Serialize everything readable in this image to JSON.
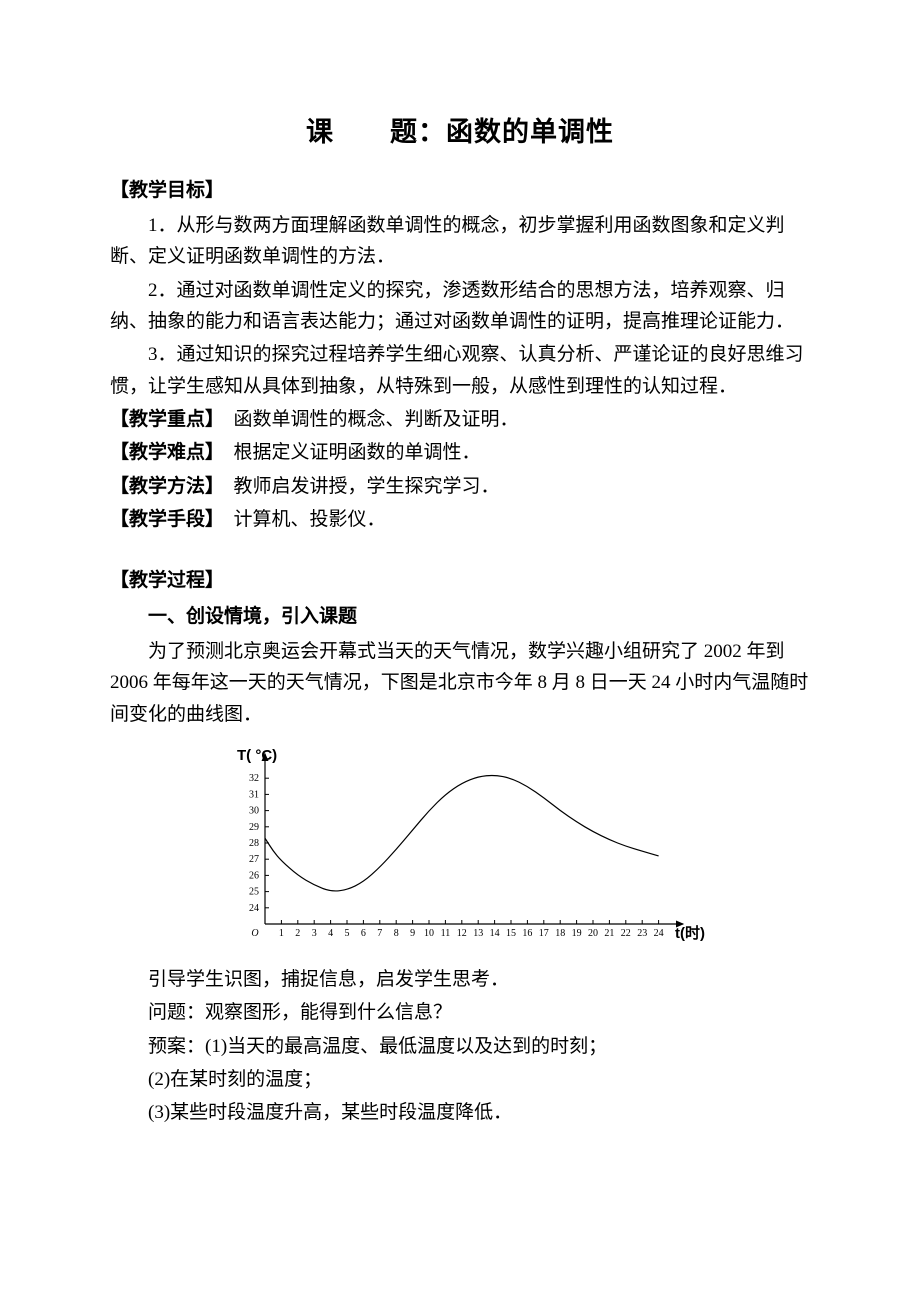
{
  "title": "课　　题：函数的单调性",
  "s1": {
    "head": "【教学目标】",
    "p1": "1．从形与数两方面理解函数单调性的概念，初步掌握利用函数图象和定义判断、定义证明函数单调性的方法．",
    "p2": "2．通过对函数单调性定义的探究，渗透数形结合的思想方法，培养观察、归纳、抽象的能力和语言表达能力；通过对函数单调性的证明，提高推理论证能力．",
    "p3": "3．通过知识的探究过程培养学生细心观察、认真分析、严谨论证的良好思维习惯，让学生感知从具体到抽象，从特殊到一般，从感性到理性的认知过程．"
  },
  "kv": {
    "k1": "【教学重点】",
    "v1": "　函数单调性的概念、判断及证明．",
    "k2": "【教学难点】",
    "v2": "　根据定义证明函数的单调性．",
    "k3": "【教学方法】",
    "v3": "　教师启发讲授，学生探究学习．",
    "k4": "【教学手段】",
    "v4": "　计算机、投影仪．"
  },
  "s2": {
    "head": "【教学过程】",
    "sub": "一、创设情境，引入课题",
    "p1": "为了预测北京奥运会开幕式当天的天气情况，数学兴趣小组研究了 2002 年到 2006 年每年这一天的天气情况，下图是北京市今年 8 月 8 日一天 24 小时内气温随时间变化的曲线图．"
  },
  "chart": {
    "type": "line",
    "y_label": "T( °C)",
    "x_label": "t(时)",
    "origin_label": "O",
    "x_ticks": [
      1,
      2,
      3,
      4,
      5,
      6,
      7,
      8,
      9,
      10,
      11,
      12,
      13,
      14,
      15,
      16,
      17,
      18,
      19,
      20,
      21,
      22,
      23,
      24
    ],
    "y_ticks": [
      24,
      25,
      26,
      27,
      28,
      29,
      30,
      31,
      32
    ],
    "xlim": [
      0,
      25
    ],
    "ylim": [
      23,
      33
    ],
    "curve": [
      [
        0,
        28.3
      ],
      [
        0.5,
        27.5
      ],
      [
        1,
        26.9
      ],
      [
        2,
        26.0
      ],
      [
        3,
        25.4
      ],
      [
        4,
        25.0
      ],
      [
        5,
        25.1
      ],
      [
        6,
        25.6
      ],
      [
        7,
        26.5
      ],
      [
        8,
        27.6
      ],
      [
        9,
        28.8
      ],
      [
        10,
        30.0
      ],
      [
        11,
        31.0
      ],
      [
        12,
        31.7
      ],
      [
        13,
        32.1
      ],
      [
        14,
        32.2
      ],
      [
        15,
        32.0
      ],
      [
        16,
        31.5
      ],
      [
        17,
        30.8
      ],
      [
        18,
        30.0
      ],
      [
        19,
        29.3
      ],
      [
        20,
        28.7
      ],
      [
        21,
        28.2
      ],
      [
        22,
        27.8
      ],
      [
        23,
        27.5
      ],
      [
        24,
        27.2
      ]
    ],
    "stroke": "#000000",
    "line_width": 1.2,
    "tick_font_size": 10,
    "label_font_size": 15,
    "background": "#ffffff"
  },
  "s3": {
    "p1": "引导学生识图，捕捉信息，启发学生思考．",
    "p2": "问题：观察图形，能得到什么信息？",
    "p3": "预案：(1)当天的最高温度、最低温度以及达到的时刻；",
    "p4": "(2)在某时刻的温度；",
    "p5": "(3)某些时段温度升高，某些时段温度降低．"
  }
}
